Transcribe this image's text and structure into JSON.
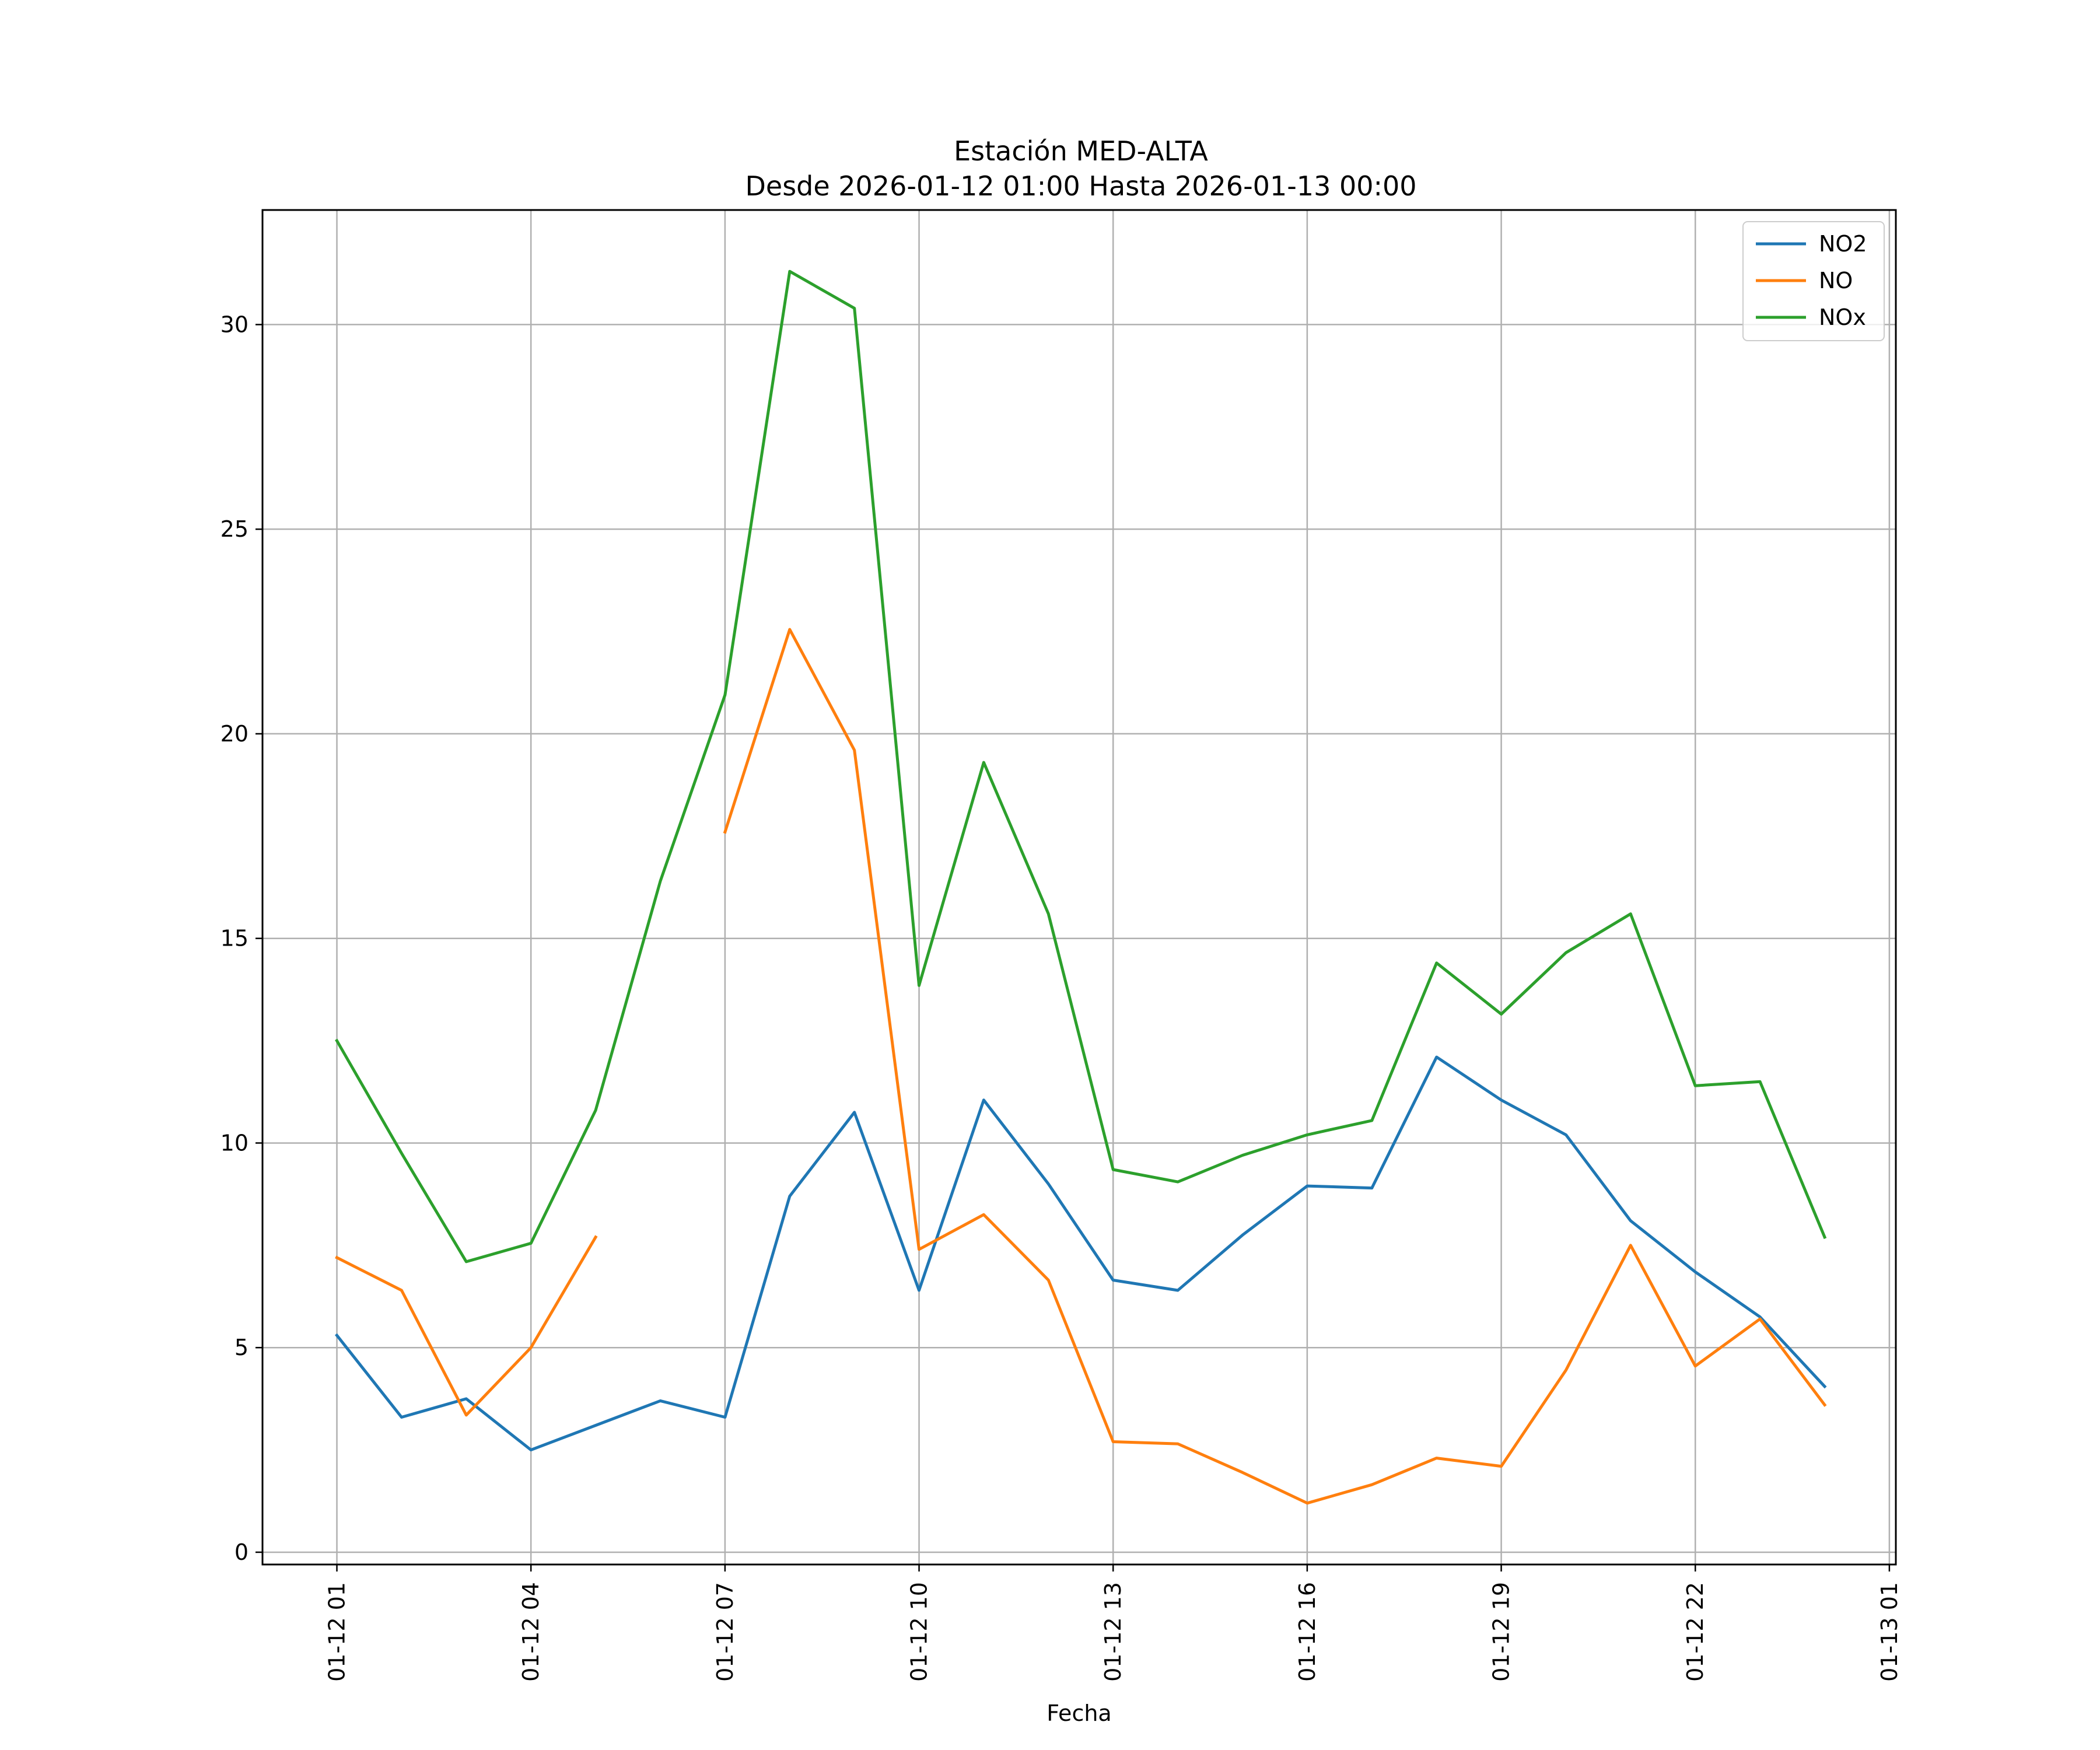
{
  "chart_data": {
    "type": "line",
    "title": "Estación MED-ALTA",
    "subtitle": "Desde 2026-01-12 01:00 Hasta 2026-01-13 00:00",
    "xlabel": "Fecha",
    "ylabel": "",
    "x": [
      "01-12 01",
      "01-12 02",
      "01-12 03",
      "01-12 04",
      "01-12 05",
      "01-12 06",
      "01-12 07",
      "01-12 08",
      "01-12 09",
      "01-12 10",
      "01-12 11",
      "01-12 12",
      "01-12 13",
      "01-12 14",
      "01-12 15",
      "01-12 16",
      "01-12 17",
      "01-12 18",
      "01-12 19",
      "01-12 20",
      "01-12 21",
      "01-12 22",
      "01-12 23",
      "01-13 00"
    ],
    "x_tick_labels": [
      "01-12 01",
      "01-12 04",
      "01-12 07",
      "01-12 10",
      "01-12 13",
      "01-12 16",
      "01-12 19",
      "01-12 22",
      "01-13 01"
    ],
    "x_tick_hours": [
      1,
      4,
      7,
      10,
      13,
      16,
      19,
      22,
      25
    ],
    "x_hours": [
      1,
      2,
      3,
      4,
      5,
      6,
      7,
      8,
      9,
      10,
      11,
      12,
      13,
      14,
      15,
      16,
      17,
      18,
      19,
      20,
      21,
      22,
      23,
      24
    ],
    "xlim_hours": [
      -0.15,
      25.1
    ],
    "ylim": [
      -0.3,
      32.8
    ],
    "y_ticks": [
      0,
      5,
      10,
      15,
      20,
      25,
      30
    ],
    "grid": true,
    "legend_position": "top-right",
    "series": [
      {
        "name": "NO2",
        "color": "#1f77b4",
        "values": [
          5.3,
          3.3,
          3.75,
          2.5,
          3.1,
          3.7,
          3.3,
          8.7,
          10.75,
          6.4,
          11.05,
          9.0,
          6.65,
          6.4,
          7.75,
          8.95,
          8.9,
          12.1,
          11.05,
          10.2,
          8.1,
          6.85,
          5.75,
          4.05
        ]
      },
      {
        "name": "NO",
        "color": "#ff7f0e",
        "values": [
          7.2,
          6.4,
          3.35,
          5.0,
          7.7,
          null,
          17.6,
          22.55,
          19.6,
          7.4,
          8.25,
          6.65,
          2.7,
          2.65,
          1.95,
          1.2,
          1.65,
          2.3,
          2.1,
          4.45,
          7.5,
          4.55,
          5.7,
          3.6
        ]
      },
      {
        "name": "NOx",
        "color": "#2ca02c",
        "values": [
          12.5,
          9.75,
          7.1,
          7.55,
          10.8,
          16.4,
          20.95,
          31.3,
          30.4,
          13.85,
          19.3,
          15.6,
          9.35,
          9.05,
          9.7,
          10.2,
          10.55,
          14.4,
          13.15,
          14.65,
          15.6,
          11.4,
          11.5,
          7.7
        ]
      }
    ]
  }
}
